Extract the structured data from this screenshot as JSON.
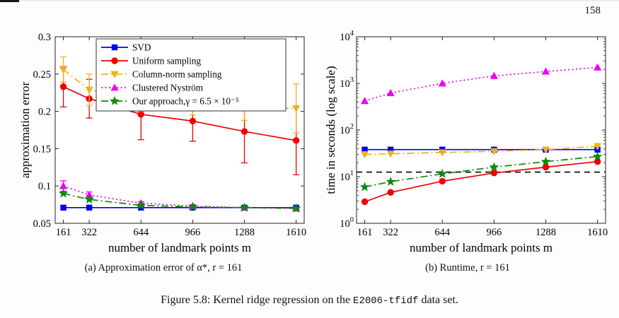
{
  "page": {
    "number": "158"
  },
  "subcaptions": {
    "a": "(a) Approximation error of α*, r = 161",
    "b": "(b) Runtime, r = 161"
  },
  "figure_caption": {
    "prefix": "Figure 5.8: Kernel ridge regression on the ",
    "code": "E2006-tfidf",
    "suffix": " data set."
  },
  "chart_data": [
    {
      "type": "line",
      "title": "",
      "xlabel": "number of landmark points m",
      "ylabel": "approximation error",
      "x": [
        161,
        322,
        644,
        966,
        1288,
        1610
      ],
      "xticks": [
        161,
        322,
        644,
        966,
        1288,
        1610
      ],
      "xtick_labels": [
        "161",
        "322",
        "644",
        "966",
        "1288",
        "1610"
      ],
      "xlim": [
        110,
        1660
      ],
      "ylim": [
        0.05,
        0.3
      ],
      "yticks": [
        0.05,
        0.1,
        0.15,
        0.2,
        0.25,
        0.3
      ],
      "ytick_labels": [
        "0.05",
        "0.1",
        "0.15",
        "0.2",
        "0.25",
        "0.3"
      ],
      "log_y": false,
      "grid": false,
      "legend": {
        "show": true,
        "position": "inside-top"
      },
      "series": [
        {
          "name": "SVD",
          "color": "#0000EE",
          "marker": "square",
          "line": "solid",
          "values": [
            0.071,
            0.071,
            0.071,
            0.071,
            0.071,
            0.071
          ]
        },
        {
          "name": "Uniform sampling",
          "color": "#EE0000",
          "marker": "circle",
          "line": "solid",
          "values": [
            0.233,
            0.217,
            0.196,
            0.187,
            0.173,
            0.161
          ],
          "errors": [
            0.027,
            0.026,
            0.034,
            0.027,
            0.042,
            0.046
          ]
        },
        {
          "name": "Column-norm sampling",
          "color": "#EDB120",
          "marker": "triangle-down",
          "line": "dashdot",
          "values": [
            0.256,
            0.229,
            0.215,
            0.209,
            0.206,
            0.204
          ],
          "errors": [
            0.017,
            0.021,
            0.015,
            0.014,
            0.018,
            0.033
          ]
        },
        {
          "name": "Clustered Nyström",
          "color": "#F000F0",
          "marker": "triangle-up",
          "line": "dotted",
          "values": [
            0.1,
            0.088,
            0.077,
            0.073,
            0.071,
            0.07
          ],
          "errors": [
            0.007,
            0.004,
            0.002,
            0.002,
            0.001,
            0.001
          ]
        },
        {
          "name": "Our approach,γ = 6.5 × 10⁻⁵",
          "color": "#0A8A0A",
          "marker": "star",
          "line": "dashdot",
          "values": [
            0.09,
            0.082,
            0.074,
            0.072,
            0.071,
            0.07
          ]
        }
      ]
    },
    {
      "type": "line",
      "title": "",
      "xlabel": "number of landmark points m",
      "ylabel": "time in seconds (log scale)",
      "x": [
        161,
        322,
        644,
        966,
        1288,
        1610
      ],
      "xticks": [
        161,
        322,
        644,
        966,
        1288,
        1610
      ],
      "xtick_labels": [
        "161",
        "322",
        "644",
        "966",
        "1288",
        "1610"
      ],
      "xlim": [
        110,
        1660
      ],
      "ylim": [
        1,
        10000
      ],
      "log_y": true,
      "grid": false,
      "series": [
        {
          "name": "SVD",
          "color": "#0000EE",
          "marker": "square",
          "line": "solid",
          "values": [
            38,
            38,
            38,
            38,
            38,
            38
          ]
        },
        {
          "name": "Uniform sampling",
          "color": "#EE0000",
          "marker": "circle",
          "line": "solid",
          "values": [
            2.9,
            4.6,
            8,
            12,
            16,
            21
          ]
        },
        {
          "name": "Column-norm sampling",
          "color": "#EDB120",
          "marker": "triangle-down",
          "line": "dashdot",
          "values": [
            30,
            31,
            33,
            35,
            38,
            45
          ]
        },
        {
          "name": "Clustered Nyström",
          "color": "#F000F0",
          "marker": "triangle-up",
          "line": "dotted",
          "values": [
            420,
            620,
            1000,
            1450,
            1800,
            2200
          ]
        },
        {
          "name": "Our approach,γ = 6.5 × 10⁻⁵",
          "color": "#0A8A0A",
          "marker": "star",
          "line": "dashdot",
          "values": [
            6,
            7.8,
            11.5,
            16,
            21,
            27
          ]
        }
      ],
      "reference_line": {
        "value": 12.5,
        "color": "#000000",
        "style": "dashed"
      }
    }
  ]
}
